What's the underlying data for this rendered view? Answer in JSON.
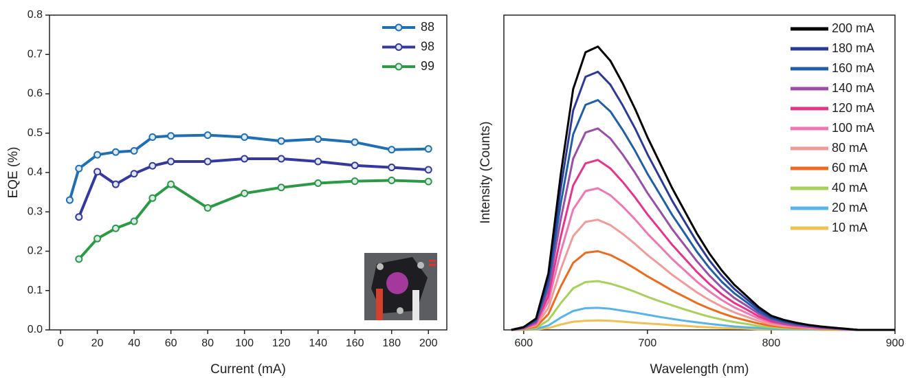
{
  "chart_data": [
    {
      "type": "line",
      "xlabel": "Current (mA)",
      "ylabel": "EQE (%)",
      "xlim": [
        -6,
        210
      ],
      "xticks": [
        0,
        20,
        40,
        60,
        80,
        100,
        120,
        140,
        160,
        180,
        200
      ],
      "ylim": [
        0,
        0.8
      ],
      "yticks": [
        {
          "value": 0,
          "label": "0.0"
        },
        0.1,
        0.2,
        0.3,
        0.4,
        0.5,
        0.6,
        0.7,
        0.8
      ],
      "legend": "upper right",
      "series": [
        {
          "name": "88",
          "color": "#1f6fb4",
          "x": [
            5,
            10,
            20,
            30,
            40,
            50,
            60,
            80,
            100,
            120,
            140,
            160,
            180,
            200
          ],
          "values": [
            0.33,
            0.41,
            0.445,
            0.452,
            0.455,
            0.49,
            0.493,
            0.495,
            0.49,
            0.48,
            0.485,
            0.477,
            0.458,
            0.46
          ]
        },
        {
          "name": "98",
          "color": "#3438a0",
          "x": [
            10,
            20,
            30,
            40,
            50,
            60,
            80,
            100,
            120,
            140,
            160,
            180,
            200
          ],
          "values": [
            0.287,
            0.402,
            0.37,
            0.397,
            0.417,
            0.428,
            0.428,
            0.435,
            0.435,
            0.428,
            0.418,
            0.413,
            0.407
          ]
        },
        {
          "name": "99",
          "color": "#2a9a45",
          "x": [
            10,
            20,
            30,
            40,
            50,
            60,
            80,
            100,
            120,
            140,
            160,
            180,
            200
          ],
          "values": [
            0.18,
            0.232,
            0.258,
            0.276,
            0.335,
            0.37,
            0.31,
            0.347,
            0.362,
            0.373,
            0.378,
            0.38,
            0.377
          ]
        }
      ]
    },
    {
      "type": "line",
      "xlabel": "Wavelength (nm)",
      "ylabel": "Intensity (Counts)",
      "xlim": [
        584,
        900
      ],
      "xticks": [
        600,
        700,
        800,
        900
      ],
      "ylim": [
        0,
        1
      ],
      "legend": "upper right",
      "x": [
        590,
        600,
        610,
        620,
        630,
        640,
        650,
        660,
        670,
        680,
        690,
        700,
        710,
        720,
        730,
        740,
        750,
        760,
        770,
        780,
        790,
        800,
        810,
        820,
        830,
        840,
        850,
        860,
        870,
        880,
        890,
        900
      ],
      "series": [
        {
          "name": "200 mA",
          "color": "#000000",
          "values": [
            0,
            0.009,
            0.036,
            0.18,
            0.495,
            0.765,
            0.882,
            0.9,
            0.855,
            0.783,
            0.702,
            0.612,
            0.531,
            0.45,
            0.378,
            0.306,
            0.243,
            0.189,
            0.144,
            0.108,
            0.072,
            0.045,
            0.032,
            0.023,
            0.016,
            0.011,
            0.007,
            0.004,
            0,
            0,
            0,
            0
          ]
        },
        {
          "name": "180 mA",
          "color": "#2b3a96",
          "values": [
            0,
            0.008,
            0.033,
            0.164,
            0.451,
            0.697,
            0.804,
            0.82,
            0.779,
            0.713,
            0.64,
            0.558,
            0.484,
            0.41,
            0.344,
            0.279,
            0.221,
            0.172,
            0.131,
            0.098,
            0.066,
            0.041,
            0.029,
            0.021,
            0.015,
            0.01,
            0.007,
            0.003,
            0,
            0,
            0,
            0
          ]
        },
        {
          "name": "160 mA",
          "color": "#1f5fa8",
          "values": [
            0,
            0.007,
            0.029,
            0.146,
            0.402,
            0.621,
            0.715,
            0.73,
            0.694,
            0.635,
            0.569,
            0.496,
            0.431,
            0.365,
            0.307,
            0.248,
            0.197,
            0.153,
            0.117,
            0.088,
            0.058,
            0.037,
            0.026,
            0.018,
            0.013,
            0.009,
            0.006,
            0.003,
            0,
            0,
            0,
            0
          ]
        },
        {
          "name": "140 mA",
          "color": "#9b4ea8",
          "values": [
            0,
            0.006,
            0.026,
            0.128,
            0.352,
            0.544,
            0.627,
            0.64,
            0.608,
            0.557,
            0.499,
            0.435,
            0.378,
            0.32,
            0.269,
            0.218,
            0.173,
            0.134,
            0.102,
            0.077,
            0.051,
            0.032,
            0.022,
            0.016,
            0.012,
            0.008,
            0.005,
            0.003,
            0,
            0,
            0,
            0
          ]
        },
        {
          "name": "120 mA",
          "color": "#e8338a",
          "values": [
            0,
            0.005,
            0.022,
            0.108,
            0.297,
            0.459,
            0.529,
            0.54,
            0.513,
            0.47,
            0.421,
            0.367,
            0.319,
            0.27,
            0.227,
            0.184,
            0.146,
            0.113,
            0.086,
            0.065,
            0.043,
            0.027,
            0.019,
            0.014,
            0.01,
            0.006,
            0.004,
            0.002,
            0,
            0,
            0,
            0
          ]
        },
        {
          "name": "100 mA",
          "color": "#ef77b2",
          "values": [
            0,
            0.005,
            0.018,
            0.09,
            0.248,
            0.383,
            0.441,
            0.45,
            0.428,
            0.392,
            0.351,
            0.306,
            0.266,
            0.225,
            0.189,
            0.153,
            0.122,
            0.095,
            0.072,
            0.054,
            0.036,
            0.023,
            0.016,
            0.011,
            0.008,
            0.005,
            0.004,
            0.002,
            0,
            0,
            0,
            0
          ]
        },
        {
          "name": "80 mA",
          "color": "#f09a9a",
          "values": [
            0,
            0.004,
            0.014,
            0.07,
            0.193,
            0.298,
            0.343,
            0.35,
            0.333,
            0.305,
            0.273,
            0.238,
            0.207,
            0.175,
            0.147,
            0.119,
            0.095,
            0.074,
            0.056,
            0.042,
            0.028,
            0.018,
            0.012,
            0.009,
            0.006,
            0.004,
            0.003,
            0.001,
            0,
            0,
            0,
            0
          ]
        },
        {
          "name": "60 mA",
          "color": "#ee6a1c",
          "values": [
            0,
            0.003,
            0.01,
            0.05,
            0.138,
            0.213,
            0.245,
            0.25,
            0.238,
            0.218,
            0.195,
            0.17,
            0.148,
            0.125,
            0.105,
            0.085,
            0.068,
            0.053,
            0.04,
            0.03,
            0.02,
            0.013,
            0.009,
            0.006,
            0.005,
            0.003,
            0.002,
            0.001,
            0,
            0,
            0,
            0
          ]
        },
        {
          "name": "40 mA",
          "color": "#a6d15a",
          "values": [
            0,
            0.002,
            0.006,
            0.031,
            0.085,
            0.132,
            0.152,
            0.155,
            0.147,
            0.135,
            0.121,
            0.105,
            0.091,
            0.078,
            0.065,
            0.053,
            0.042,
            0.033,
            0.025,
            0.019,
            0.012,
            0.008,
            0.005,
            0.004,
            0.003,
            0.002,
            0.001,
            0.001,
            0,
            0,
            0,
            0
          ]
        },
        {
          "name": "20 mA",
          "color": "#56b4e6",
          "values": [
            0,
            0.001,
            0.003,
            0.014,
            0.039,
            0.06,
            0.069,
            0.07,
            0.067,
            0.061,
            0.055,
            0.048,
            0.041,
            0.035,
            0.029,
            0.024,
            0.019,
            0.015,
            0.011,
            0.008,
            0.006,
            0.004,
            0.002,
            0.002,
            0.001,
            0.001,
            0.001,
            0,
            0,
            0,
            0,
            0
          ]
        },
        {
          "name": "10 mA",
          "color": "#f0c050",
          "values": [
            0,
            0,
            0.001,
            0.006,
            0.017,
            0.026,
            0.029,
            0.03,
            0.029,
            0.026,
            0.023,
            0.02,
            0.018,
            0.015,
            0.013,
            0.01,
            0.008,
            0.006,
            0.005,
            0.004,
            0.002,
            0.002,
            0.001,
            0.001,
            0.001,
            0,
            0,
            0,
            0,
            0,
            0,
            0
          ]
        }
      ]
    }
  ]
}
